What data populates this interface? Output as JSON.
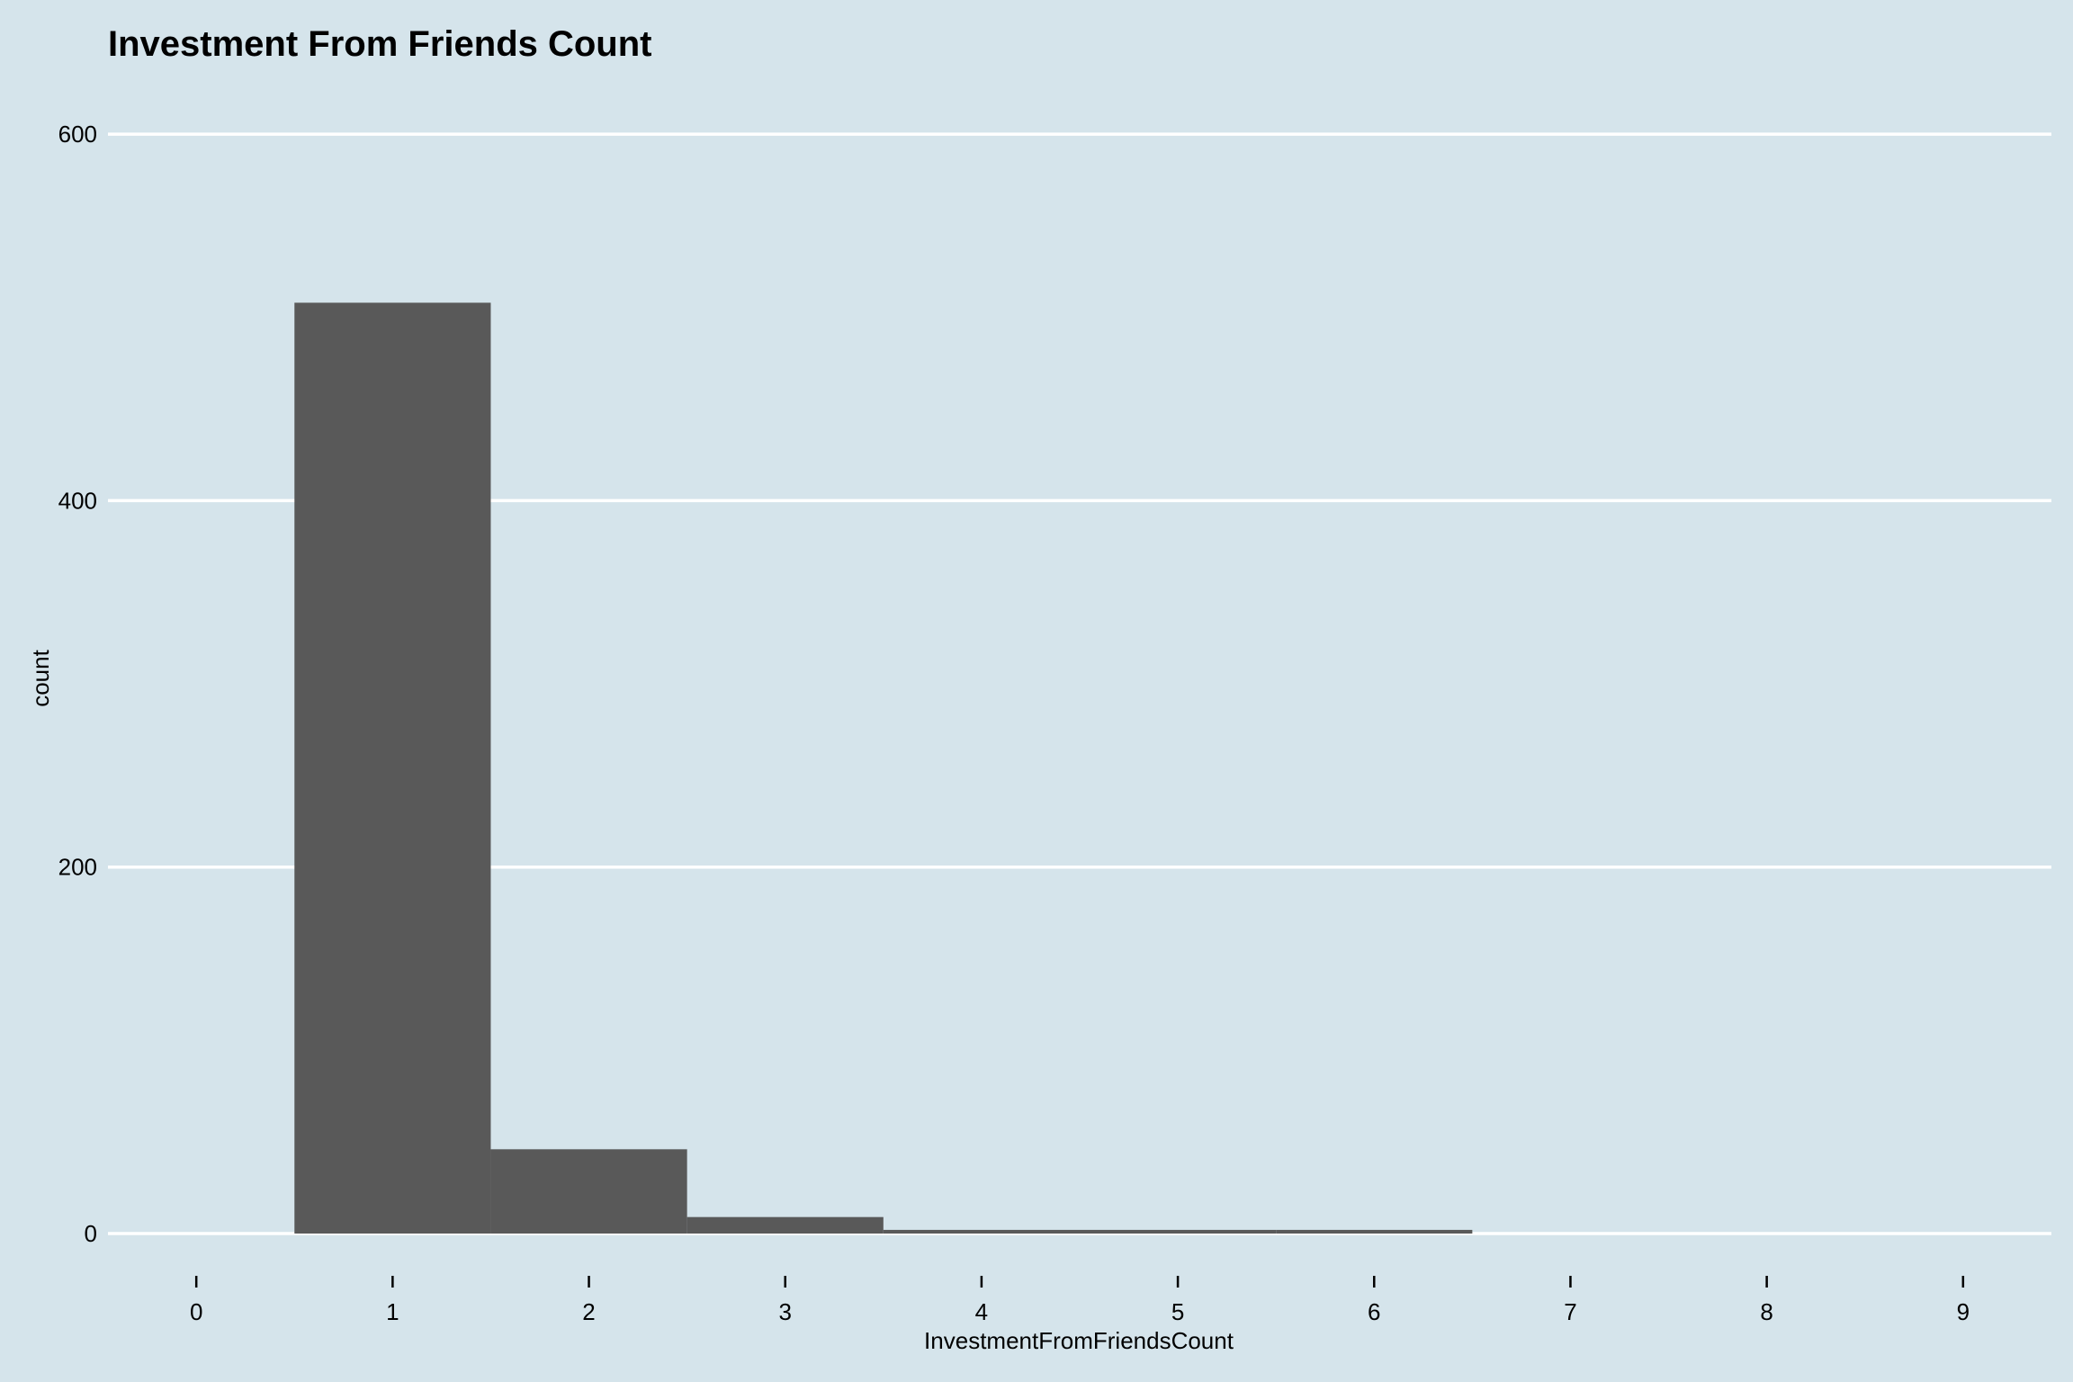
{
  "chart_data": {
    "type": "bar",
    "title": "Investment From Friends Count",
    "xlabel": "InvestmentFromFriendsCount",
    "ylabel": "count",
    "x_ticks": [
      0,
      1,
      2,
      3,
      4,
      5,
      6,
      7,
      8,
      9
    ],
    "y_ticks": [
      0,
      200,
      400,
      600
    ],
    "xlim": [
      -0.45,
      9.45
    ],
    "ylim": [
      0,
      630
    ],
    "categories": [
      1,
      2,
      3,
      4,
      5,
      6
    ],
    "values": [
      508,
      46,
      9,
      2,
      2,
      2
    ],
    "grid": "horizontal major only",
    "colors": {
      "background": "#d5e4eb",
      "bar": "#595959",
      "grid": "#ffffff"
    }
  }
}
